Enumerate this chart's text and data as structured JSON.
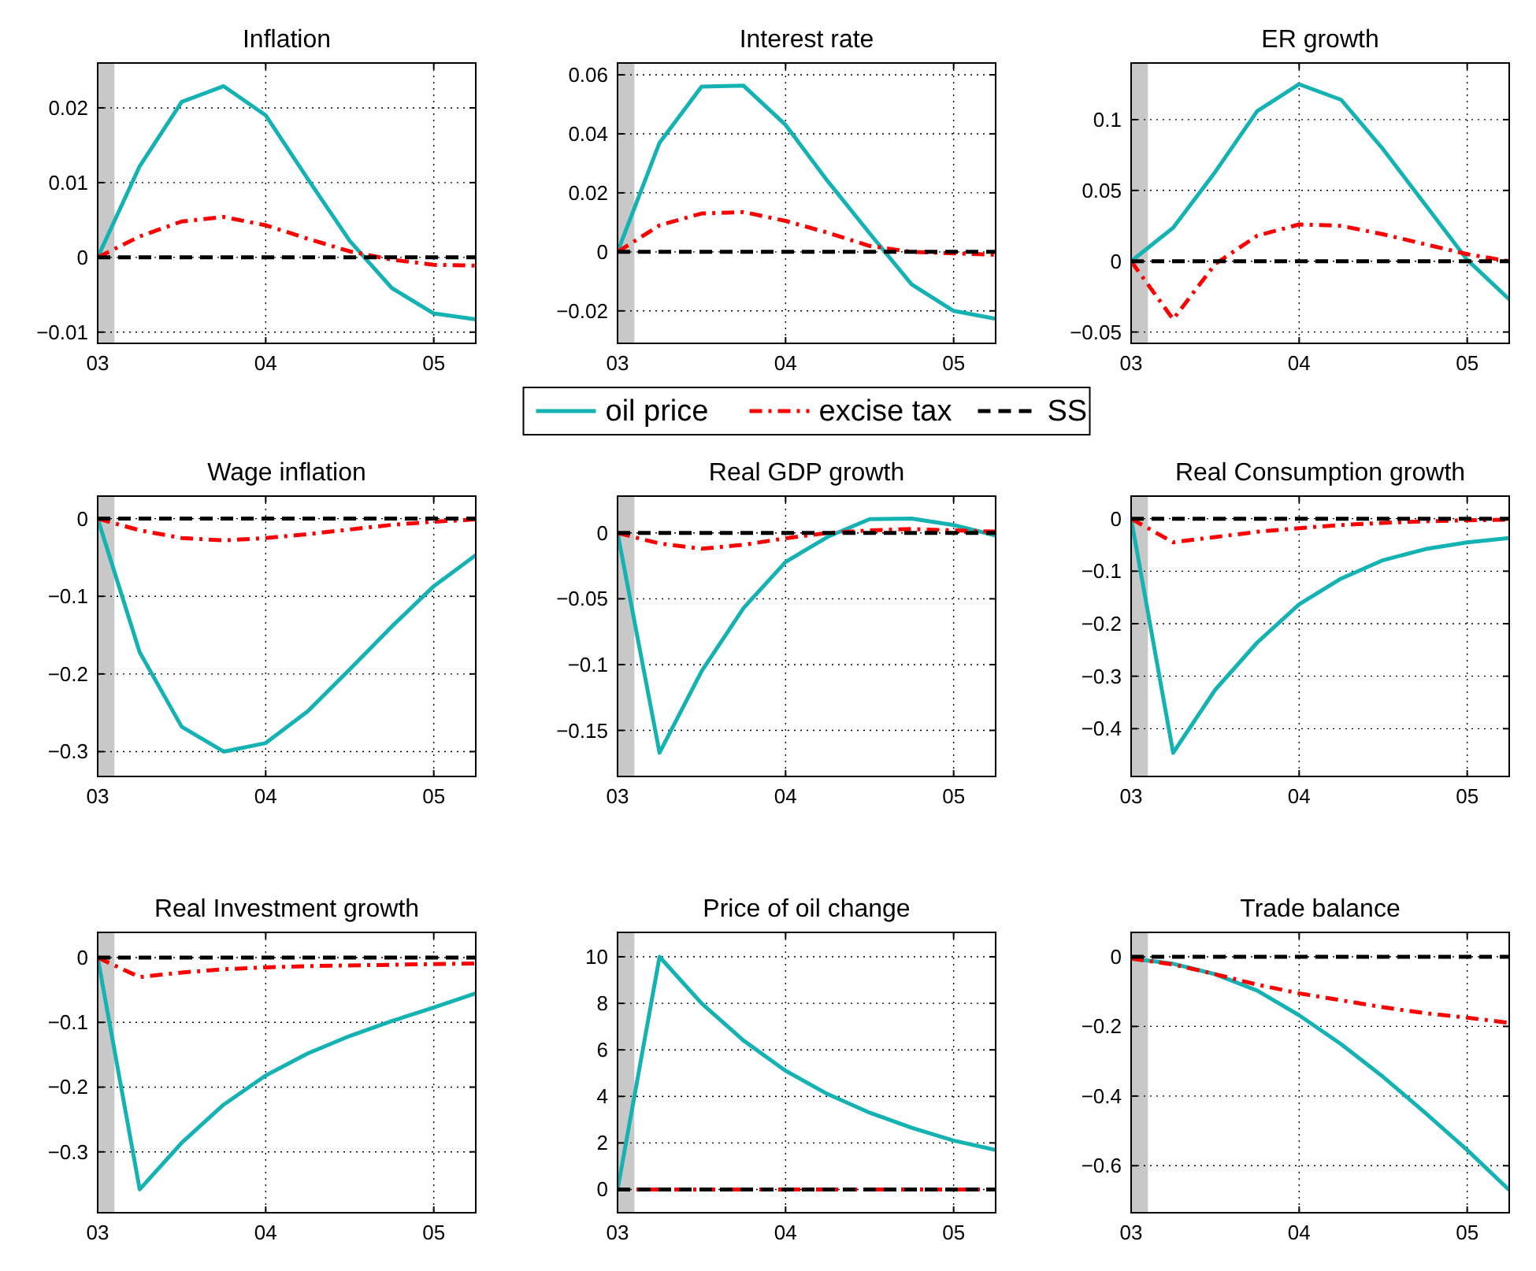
{
  "chart_data": [
    {
      "type": "line",
      "title": "Inflation",
      "x": [
        2003,
        2003.25,
        2003.5,
        2003.75,
        2004,
        2004.25,
        2004.5,
        2004.75,
        2005,
        2005.25
      ],
      "xlim": [
        2003,
        2005.25
      ],
      "xticks": [
        {
          "value": 2003,
          "label": "03"
        },
        {
          "value": 2004,
          "label": "04"
        },
        {
          "value": 2005,
          "label": "05"
        }
      ],
      "ylim": [
        -0.0115,
        0.026
      ],
      "yticks": [
        -0.01,
        0,
        0.01,
        0.02
      ],
      "grid": true,
      "legend": false,
      "bands": [
        {
          "axis": "x",
          "from": 2003,
          "to": 2003.1,
          "color": "#c8c8c8"
        }
      ],
      "series": [
        {
          "color": "#14b2b2",
          "line_style": "solid",
          "values": [
            0,
            0.0122,
            0.0208,
            0.0229,
            0.019,
            0.0105,
            0.0022,
            -0.0041,
            -0.0075,
            -0.0083
          ]
        },
        {
          "color": "#ff0000",
          "line_style": "dashdot",
          "values": [
            0,
            0.0028,
            0.0048,
            0.0054,
            0.0043,
            0.0025,
            0.0008,
            -0.0003,
            -0.001,
            -0.0011
          ]
        },
        {
          "color": "#000000",
          "line_style": "dashed",
          "values": [
            0,
            0,
            0,
            0,
            0,
            0,
            0,
            0,
            0,
            0
          ]
        }
      ]
    },
    {
      "type": "line",
      "title": "Interest rate",
      "x": [
        2003,
        2003.25,
        2003.5,
        2003.75,
        2004,
        2004.25,
        2004.5,
        2004.75,
        2005,
        2005.25
      ],
      "xlim": [
        2003,
        2005.25
      ],
      "xticks": [
        {
          "value": 2003,
          "label": "03"
        },
        {
          "value": 2004,
          "label": "04"
        },
        {
          "value": 2005,
          "label": "05"
        }
      ],
      "ylim": [
        -0.031,
        0.064
      ],
      "yticks": [
        -0.02,
        0,
        0.02,
        0.04,
        0.06
      ],
      "grid": true,
      "legend": "bottom",
      "bands": [
        {
          "axis": "x",
          "from": 2003,
          "to": 2003.1,
          "color": "#c8c8c8"
        }
      ],
      "series": [
        {
          "name": "oil price",
          "color": "#14b2b2",
          "line_style": "solid",
          "values": [
            0,
            0.037,
            0.056,
            0.0563,
            0.043,
            0.024,
            0.0063,
            -0.011,
            -0.02,
            -0.0227
          ]
        },
        {
          "name": "excise tax",
          "color": "#ff0000",
          "line_style": "dashdot",
          "values": [
            0,
            0.009,
            0.013,
            0.0135,
            0.0105,
            0.0065,
            0.002,
            0,
            -0.0005,
            -0.001
          ]
        },
        {
          "name": "SS",
          "color": "#000000",
          "line_style": "dashed",
          "values": [
            0,
            0,
            0,
            0,
            0,
            0,
            0,
            0,
            0,
            0
          ]
        }
      ]
    },
    {
      "type": "line",
      "title": "ER growth",
      "x": [
        2003,
        2003.25,
        2003.5,
        2003.75,
        2004,
        2004.25,
        2004.5,
        2004.75,
        2005,
        2005.25
      ],
      "xlim": [
        2003,
        2005.25
      ],
      "xticks": [
        {
          "value": 2003,
          "label": "03"
        },
        {
          "value": 2004,
          "label": "04"
        },
        {
          "value": 2005,
          "label": "05"
        }
      ],
      "ylim": [
        -0.058,
        0.14
      ],
      "yticks": [
        -0.05,
        0,
        0.05,
        0.1
      ],
      "grid": true,
      "legend": false,
      "bands": [
        {
          "axis": "x",
          "from": 2003,
          "to": 2003.1,
          "color": "#c8c8c8"
        }
      ],
      "series": [
        {
          "color": "#14b2b2",
          "line_style": "solid",
          "values": [
            0,
            0.0236,
            0.063,
            0.106,
            0.125,
            0.114,
            0.079,
            0.04,
            0.001,
            -0.027
          ]
        },
        {
          "color": "#ff0000",
          "line_style": "dashdot",
          "values": [
            0,
            -0.041,
            -0.002,
            0.018,
            0.026,
            0.025,
            0.019,
            0.012,
            0.005,
            0
          ]
        },
        {
          "color": "#000000",
          "line_style": "dashed",
          "values": [
            0,
            0,
            0,
            0,
            0,
            0,
            0,
            0,
            0,
            0
          ]
        }
      ]
    },
    {
      "type": "line",
      "title": "Wage inflation",
      "x": [
        2003,
        2003.25,
        2003.5,
        2003.75,
        2004,
        2004.25,
        2004.5,
        2004.75,
        2005,
        2005.25
      ],
      "xlim": [
        2003,
        2005.25
      ],
      "xticks": [
        {
          "value": 2003,
          "label": "03"
        },
        {
          "value": 2004,
          "label": "04"
        },
        {
          "value": 2005,
          "label": "05"
        }
      ],
      "ylim": [
        -0.332,
        0.029
      ],
      "yticks": [
        -0.3,
        -0.2,
        -0.1,
        0
      ],
      "grid": true,
      "legend": false,
      "bands": [
        {
          "axis": "x",
          "from": 2003,
          "to": 2003.1,
          "color": "#c8c8c8"
        }
      ],
      "series": [
        {
          "color": "#14b2b2",
          "line_style": "solid",
          "values": [
            0,
            -0.172,
            -0.268,
            -0.3,
            -0.289,
            -0.248,
            -0.194,
            -0.139,
            -0.087,
            -0.047
          ]
        },
        {
          "color": "#ff0000",
          "line_style": "dashdot",
          "values": [
            0,
            -0.015,
            -0.025,
            -0.028,
            -0.025,
            -0.02,
            -0.014,
            -0.008,
            -0.004,
            -0.001
          ]
        },
        {
          "color": "#000000",
          "line_style": "dashed",
          "values": [
            0,
            0,
            0,
            0,
            0,
            0,
            0,
            0,
            0,
            0
          ]
        }
      ]
    },
    {
      "type": "line",
      "title": "Real GDP growth",
      "x": [
        2003,
        2003.25,
        2003.5,
        2003.75,
        2004,
        2004.25,
        2004.5,
        2004.75,
        2005,
        2005.25
      ],
      "xlim": [
        2003,
        2005.25
      ],
      "xticks": [
        {
          "value": 2003,
          "label": "03"
        },
        {
          "value": 2004,
          "label": "04"
        },
        {
          "value": 2005,
          "label": "05"
        }
      ],
      "ylim": [
        -0.185,
        0.028
      ],
      "yticks": [
        -0.15,
        -0.1,
        -0.05,
        0
      ],
      "grid": true,
      "legend": false,
      "bands": [
        {
          "axis": "x",
          "from": 2003,
          "to": 2003.1,
          "color": "#c8c8c8"
        }
      ],
      "series": [
        {
          "color": "#14b2b2",
          "line_style": "solid",
          "values": [
            0,
            -0.167,
            -0.105,
            -0.057,
            -0.022,
            -0.003,
            0.0105,
            0.011,
            0.006,
            -0.002
          ]
        },
        {
          "color": "#ff0000",
          "line_style": "dashdot",
          "values": [
            0,
            -0.008,
            -0.012,
            -0.009,
            -0.004,
            0,
            0.002,
            0.003,
            0.002,
            0.001
          ]
        },
        {
          "color": "#000000",
          "line_style": "dashed",
          "values": [
            0,
            0,
            0,
            0,
            0,
            0,
            0,
            0,
            0,
            0
          ]
        }
      ]
    },
    {
      "type": "line",
      "title": "Real Consumption growth",
      "x": [
        2003,
        2003.25,
        2003.5,
        2003.75,
        2004,
        2004.25,
        2004.5,
        2004.75,
        2005,
        2005.25
      ],
      "xlim": [
        2003,
        2005.25
      ],
      "xticks": [
        {
          "value": 2003,
          "label": "03"
        },
        {
          "value": 2004,
          "label": "04"
        },
        {
          "value": 2005,
          "label": "05"
        }
      ],
      "ylim": [
        -0.491,
        0.043
      ],
      "yticks": [
        -0.4,
        -0.3,
        -0.2,
        -0.1,
        0
      ],
      "grid": true,
      "legend": false,
      "bands": [
        {
          "axis": "x",
          "from": 2003,
          "to": 2003.1,
          "color": "#c8c8c8"
        }
      ],
      "series": [
        {
          "color": "#14b2b2",
          "line_style": "solid",
          "values": [
            0,
            -0.446,
            -0.326,
            -0.236,
            -0.163,
            -0.114,
            -0.079,
            -0.058,
            -0.045,
            -0.037
          ]
        },
        {
          "color": "#ff0000",
          "line_style": "dashdot",
          "values": [
            0,
            -0.045,
            -0.035,
            -0.025,
            -0.018,
            -0.012,
            -0.008,
            -0.005,
            -0.003,
            -0.002
          ]
        },
        {
          "color": "#000000",
          "line_style": "dashed",
          "values": [
            0,
            0,
            0,
            0,
            0,
            0,
            0,
            0,
            0,
            0
          ]
        }
      ]
    },
    {
      "type": "line",
      "title": "Real Investment growth",
      "x": [
        2003,
        2003.25,
        2003.5,
        2003.75,
        2004,
        2004.25,
        2004.5,
        2004.75,
        2005,
        2005.25
      ],
      "xlim": [
        2003,
        2005.25
      ],
      "xticks": [
        {
          "value": 2003,
          "label": "03"
        },
        {
          "value": 2004,
          "label": "04"
        },
        {
          "value": 2005,
          "label": "05"
        }
      ],
      "ylim": [
        -0.394,
        0.039
      ],
      "yticks": [
        -0.3,
        -0.2,
        -0.1,
        0
      ],
      "grid": true,
      "legend": false,
      "bands": [
        {
          "axis": "x",
          "from": 2003,
          "to": 2003.1,
          "color": "#c8c8c8"
        }
      ],
      "series": [
        {
          "color": "#14b2b2",
          "line_style": "solid",
          "values": [
            0,
            -0.358,
            -0.286,
            -0.227,
            -0.182,
            -0.148,
            -0.121,
            -0.098,
            -0.077,
            -0.055
          ]
        },
        {
          "color": "#ff0000",
          "line_style": "dashdot",
          "values": [
            0,
            -0.03,
            -0.023,
            -0.018,
            -0.015,
            -0.013,
            -0.012,
            -0.011,
            -0.01,
            -0.009
          ]
        },
        {
          "color": "#000000",
          "line_style": "dashed",
          "values": [
            0,
            0,
            0,
            0,
            0,
            0,
            0,
            0,
            0,
            0
          ]
        }
      ]
    },
    {
      "type": "line",
      "title": "Price of oil change",
      "x": [
        2003,
        2003.25,
        2003.5,
        2003.75,
        2004,
        2004.25,
        2004.5,
        2004.75,
        2005,
        2005.25
      ],
      "xlim": [
        2003,
        2005.25
      ],
      "xticks": [
        {
          "value": 2003,
          "label": "03"
        },
        {
          "value": 2004,
          "label": "04"
        },
        {
          "value": 2005,
          "label": "05"
        }
      ],
      "ylim": [
        -1,
        11.05
      ],
      "yticks": [
        0,
        2,
        4,
        6,
        8,
        10
      ],
      "grid": true,
      "legend": false,
      "bands": [
        {
          "axis": "x",
          "from": 2003,
          "to": 2003.1,
          "color": "#c8c8c8"
        }
      ],
      "series": [
        {
          "color": "#14b2b2",
          "line_style": "solid",
          "values": [
            0,
            10,
            8,
            6.4,
            5.1,
            4.1,
            3.3,
            2.65,
            2.1,
            1.7
          ]
        },
        {
          "color": "#ff0000",
          "line_style": "dashdot",
          "values": [
            0,
            0,
            0,
            0,
            0,
            0,
            0,
            0,
            0,
            0
          ]
        },
        {
          "color": "#000000",
          "line_style": "dashed",
          "values": [
            0,
            0,
            0,
            0,
            0,
            0,
            0,
            0,
            0,
            0
          ]
        }
      ]
    },
    {
      "type": "line",
      "title": "Trade balance",
      "x": [
        2003,
        2003.25,
        2003.5,
        2003.75,
        2004,
        2004.25,
        2004.5,
        2004.75,
        2005,
        2005.25
      ],
      "xlim": [
        2003,
        2005.25
      ],
      "xticks": [
        {
          "value": 2003,
          "label": "03"
        },
        {
          "value": 2004,
          "label": "04"
        },
        {
          "value": 2005,
          "label": "05"
        }
      ],
      "ylim": [
        -0.735,
        0.07
      ],
      "yticks": [
        -0.6,
        -0.4,
        -0.2,
        0
      ],
      "grid": true,
      "legend": false,
      "bands": [
        {
          "axis": "x",
          "from": 2003,
          "to": 2003.1,
          "color": "#c8c8c8"
        }
      ],
      "series": [
        {
          "color": "#14b2b2",
          "line_style": "solid",
          "values": [
            -0.005,
            -0.02,
            -0.05,
            -0.097,
            -0.168,
            -0.251,
            -0.345,
            -0.448,
            -0.555,
            -0.67
          ]
        },
        {
          "color": "#ff0000",
          "line_style": "dashdot",
          "values": [
            -0.005,
            -0.022,
            -0.05,
            -0.08,
            -0.105,
            -0.125,
            -0.145,
            -0.162,
            -0.175,
            -0.19
          ]
        },
        {
          "color": "#000000",
          "line_style": "dashed",
          "values": [
            0,
            0,
            0,
            0,
            0,
            0,
            0,
            0,
            0,
            0
          ]
        }
      ]
    }
  ]
}
